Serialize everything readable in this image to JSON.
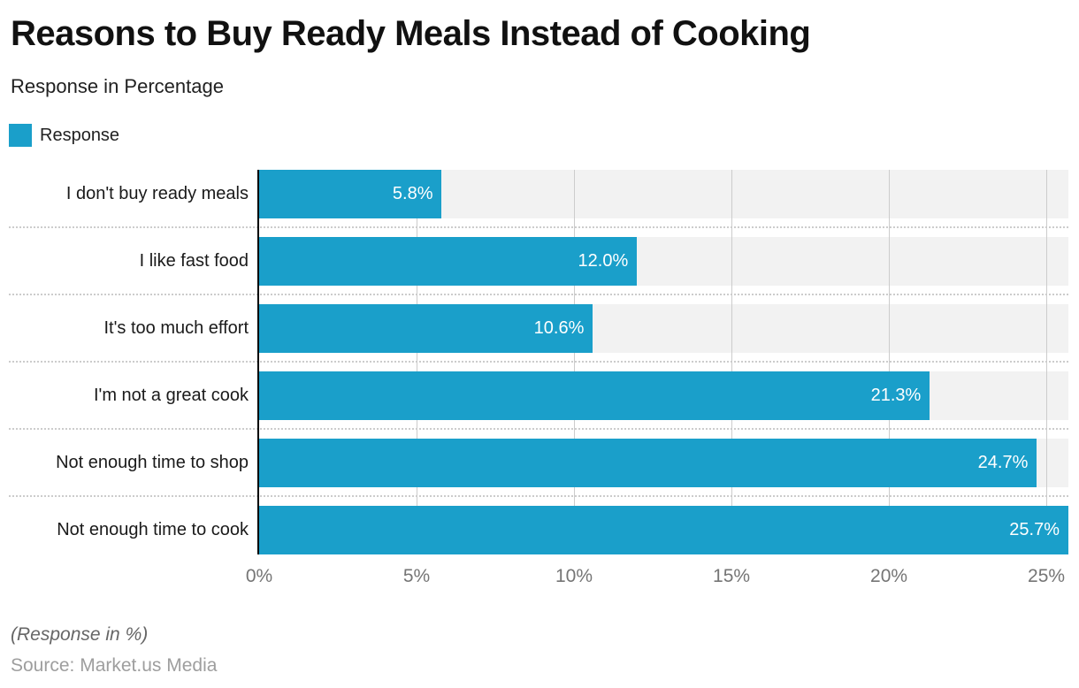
{
  "chart_data": {
    "type": "bar",
    "orientation": "horizontal",
    "title": "Reasons to Buy Ready Meals Instead of Cooking",
    "subtitle": "Response in Percentage",
    "legend_label": "Response",
    "legend_position": "top-left",
    "categories": [
      "I don't buy ready meals",
      "I like fast food",
      "It's too much effort",
      "I'm not a great cook",
      "Not enough time to shop",
      "Not enough time to cook"
    ],
    "values": [
      5.8,
      12.0,
      10.6,
      21.3,
      24.7,
      25.7
    ],
    "value_labels": [
      "5.8%",
      "12.0%",
      "10.6%",
      "21.3%",
      "24.7%",
      "25.7%"
    ],
    "series_name": "Response",
    "xlim": [
      0,
      25.7
    ],
    "tick_values": [
      0,
      5,
      10,
      15,
      20,
      25
    ],
    "tick_labels": [
      "0%",
      "5%",
      "10%",
      "15%",
      "20%",
      "25%"
    ],
    "grid": true
  },
  "footer": {
    "note": "(Response in %)",
    "source": "Source: Market.us Media"
  },
  "colors": {
    "bar": "#1a9fca",
    "track": "#f2f2f2",
    "grid": "#cccccc",
    "separator": "#cccccc",
    "axis": "#000000",
    "value_text": "#ffffff",
    "tick_text": "#757575",
    "note_text": "#666666",
    "source_text": "#9e9e9e"
  }
}
